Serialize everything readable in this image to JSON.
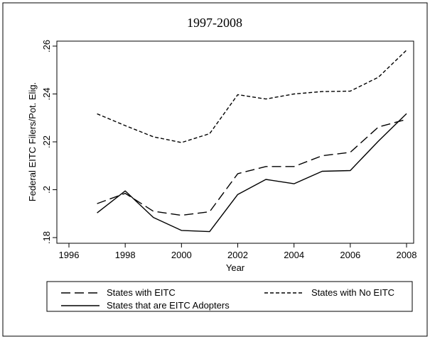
{
  "chart_data": {
    "type": "line",
    "title": "1997-2008",
    "xlabel": "Year",
    "ylabel": "Federal EITC Filers/Pot. Elig.",
    "xlim": [
      1996,
      2008
    ],
    "ylim": [
      0.18,
      0.26
    ],
    "x_ticks": [
      1996,
      1998,
      2000,
      2002,
      2004,
      2006,
      2008
    ],
    "x_tick_labels": [
      "1996",
      "1998",
      "2000",
      "2002",
      "2004",
      "2006",
      "2008"
    ],
    "y_ticks": [
      0.18,
      0.2,
      0.22,
      0.24,
      0.26
    ],
    "y_tick_labels": [
      ".18",
      ".2",
      ".22",
      ".24",
      ".26"
    ],
    "grid": false,
    "legend_placement": "bottom",
    "x": [
      1997,
      1998,
      1999,
      2000,
      2001,
      2002,
      2003,
      2004,
      2005,
      2006,
      2007,
      2008
    ],
    "series": [
      {
        "name": "States with EITC",
        "dash": "long-dash",
        "values": [
          0.1942,
          0.1985,
          0.191,
          0.1893,
          0.1908,
          0.2067,
          0.2097,
          0.2097,
          0.2142,
          0.2156,
          0.2262,
          0.2294
        ]
      },
      {
        "name": "States with No EITC",
        "dash": "short-dash",
        "values": [
          0.2317,
          0.2268,
          0.2221,
          0.2197,
          0.2234,
          0.2397,
          0.2379,
          0.24,
          0.241,
          0.2412,
          0.247,
          0.2583
        ]
      },
      {
        "name": "States that are EITC Adopters",
        "dash": "solid",
        "values": [
          0.1903,
          0.1995,
          0.1884,
          0.183,
          0.1825,
          0.198,
          0.2043,
          0.2025,
          0.2077,
          0.208,
          0.2203,
          0.2318
        ]
      }
    ]
  }
}
